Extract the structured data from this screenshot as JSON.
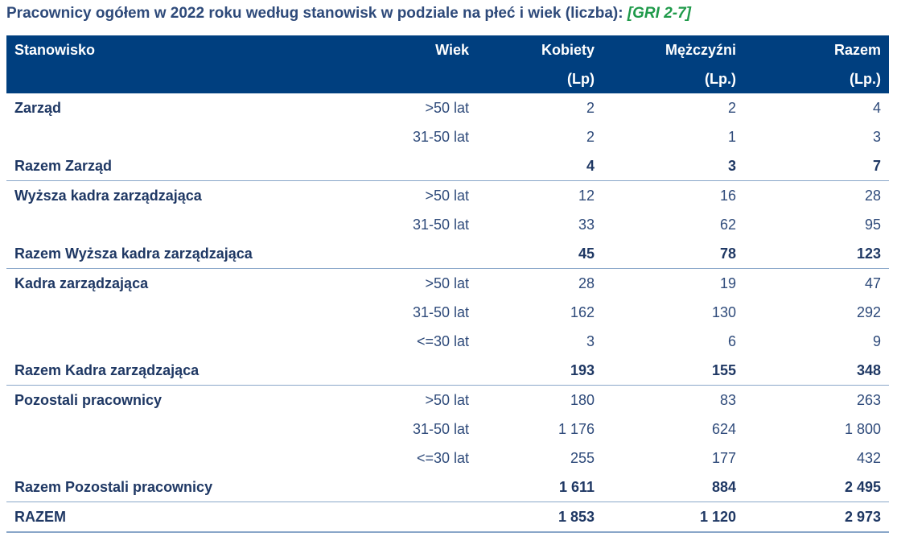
{
  "title": {
    "text": "Pracownicy ogółem w 2022 roku według stanowisk w podziale na płeć i wiek (liczba): ",
    "gri": "[GRI 2-7]"
  },
  "header": {
    "stanowisko": "Stanowisko",
    "wiek": "Wiek",
    "kobiety": "Kobiety",
    "kobiety_unit": "(Lp)",
    "mezczyzni": "Mężczyźni",
    "mezczyzni_unit": "(Lp.)",
    "razem": "Razem",
    "razem_unit": "(Lp.)"
  },
  "groups": [
    {
      "name": "Zarząd",
      "rows": [
        {
          "age": ">50 lat",
          "k": "2",
          "m": "2",
          "r": "4"
        },
        {
          "age": "31-50 lat",
          "k": "2",
          "m": "1",
          "r": "3"
        }
      ],
      "total": {
        "label": "Razem Zarząd",
        "k": "4",
        "m": "3",
        "r": "7"
      }
    },
    {
      "name": "Wyższa kadra zarządzająca",
      "rows": [
        {
          "age": ">50 lat",
          "k": "12",
          "m": "16",
          "r": "28"
        },
        {
          "age": "31-50 lat",
          "k": "33",
          "m": "62",
          "r": "95"
        }
      ],
      "total": {
        "label": "Razem Wyższa kadra zarządzająca",
        "k": "45",
        "m": "78",
        "r": "123"
      }
    },
    {
      "name": "Kadra zarządzająca",
      "rows": [
        {
          "age": ">50 lat",
          "k": "28",
          "m": "19",
          "r": "47"
        },
        {
          "age": "31-50 lat",
          "k": "162",
          "m": "130",
          "r": "292"
        },
        {
          "age": "<=30 lat",
          "k": "3",
          "m": "6",
          "r": "9"
        }
      ],
      "total": {
        "label": "Razem Kadra zarządzająca",
        "k": "193",
        "m": "155",
        "r": "348"
      }
    },
    {
      "name": "Pozostali pracownicy",
      "rows": [
        {
          "age": ">50 lat",
          "k": "180",
          "m": "83",
          "r": "263"
        },
        {
          "age": "31-50 lat",
          "k": "1 176",
          "m": "624",
          "r": "1 800"
        },
        {
          "age": "<=30 lat",
          "k": "255",
          "m": "177",
          "r": "432"
        }
      ],
      "total": {
        "label": "Razem Pozostali pracownicy",
        "k": "1 611",
        "m": "884",
        "r": "2 495"
      }
    }
  ],
  "grand_total": {
    "label": "RAZEM",
    "k": "1 853",
    "m": "1 120",
    "r": "2 973"
  }
}
